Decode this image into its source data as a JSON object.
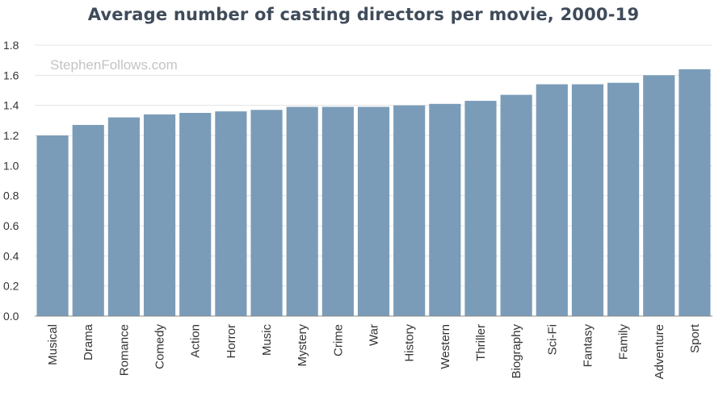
{
  "chart_data": {
    "type": "bar",
    "title": "Average number of casting directors per movie, 2000-19",
    "watermark": "StephenFollows.com",
    "xlabel": "",
    "ylabel": "",
    "categories": [
      "Musical",
      "Drama",
      "Romance",
      "Comedy",
      "Action",
      "Horror",
      "Music",
      "Mystery",
      "Crime",
      "War",
      "History",
      "Western",
      "Thriller",
      "Biography",
      "Sci-Fi",
      "Fantasy",
      "Family",
      "Adventure",
      "Sport"
    ],
    "values": [
      1.2,
      1.27,
      1.32,
      1.34,
      1.35,
      1.36,
      1.37,
      1.39,
      1.39,
      1.39,
      1.4,
      1.41,
      1.43,
      1.47,
      1.54,
      1.54,
      1.55,
      1.6,
      1.64
    ],
    "ylim": [
      0,
      1.8
    ],
    "yticks": [
      "0.0",
      "0.2",
      "0.4",
      "0.6",
      "0.8",
      "1.0",
      "1.2",
      "1.4",
      "1.6",
      "1.8"
    ],
    "grid": true,
    "colors": {
      "bar": "#7a9cb8",
      "grid": "#e3e3e3",
      "axis": "#888888"
    }
  }
}
